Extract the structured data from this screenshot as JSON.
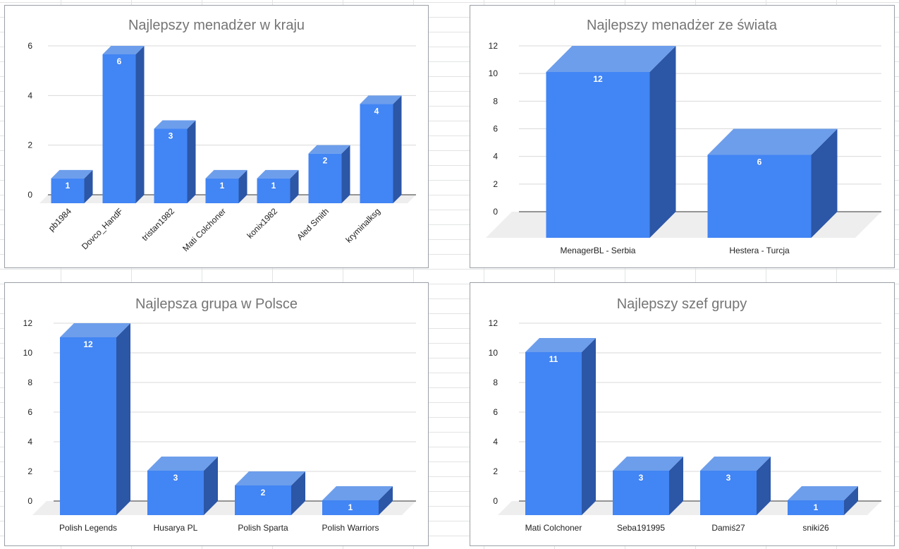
{
  "colors": {
    "bar_front": "#4285f4",
    "bar_top": "#6d9eeb",
    "bar_side": "#2c56a6",
    "floor": "#eeeeee",
    "gridline": "#d9d9d9",
    "axis": "#333333",
    "title": "#757575",
    "label": "#222222",
    "data_label": "#ffffff"
  },
  "chart_data": [
    {
      "type": "bar",
      "title": "Najlepszy menadżer w kraju",
      "categories": [
        "pb1984",
        "Dovco_HandF",
        "tristan1982",
        "Mati Colchoner",
        "konix1982",
        "Aled Smith",
        "kryminalksg"
      ],
      "values": [
        1,
        6,
        3,
        1,
        1,
        2,
        4
      ],
      "yticks": [
        0,
        2,
        4,
        6
      ],
      "ylim": [
        0,
        6
      ],
      "xlabel": "",
      "ylabel": "",
      "grid": true,
      "legend": "none",
      "rotated_labels": true
    },
    {
      "type": "bar",
      "title": "Najlepszy menadżer ze świata",
      "categories": [
        "MenagerBL - Serbia",
        "Hestera - Turcja"
      ],
      "values": [
        12,
        6
      ],
      "yticks": [
        0,
        2,
        4,
        6,
        8,
        10,
        12
      ],
      "ylim": [
        0,
        12
      ],
      "xlabel": "",
      "ylabel": "",
      "grid": true,
      "legend": "none",
      "rotated_labels": false
    },
    {
      "type": "bar",
      "title": "Najlepsza grupa w Polsce",
      "categories": [
        "Polish Legends",
        "Husarya PL",
        "Polish Sparta",
        "Polish Warriors"
      ],
      "values": [
        12,
        3,
        2,
        1
      ],
      "yticks": [
        0,
        2,
        4,
        6,
        8,
        10,
        12
      ],
      "ylim": [
        0,
        12
      ],
      "xlabel": "",
      "ylabel": "",
      "grid": true,
      "legend": "none",
      "rotated_labels": false
    },
    {
      "type": "bar",
      "title": "Najlepszy szef grupy",
      "categories": [
        "Mati Colchoner",
        "Seba191995",
        "Damiś27",
        "sniki26"
      ],
      "values": [
        11,
        3,
        3,
        1
      ],
      "yticks": [
        0,
        2,
        4,
        6,
        8,
        10,
        12
      ],
      "ylim": [
        0,
        12
      ],
      "xlabel": "",
      "ylabel": "",
      "grid": true,
      "legend": "none",
      "rotated_labels": false
    }
  ]
}
